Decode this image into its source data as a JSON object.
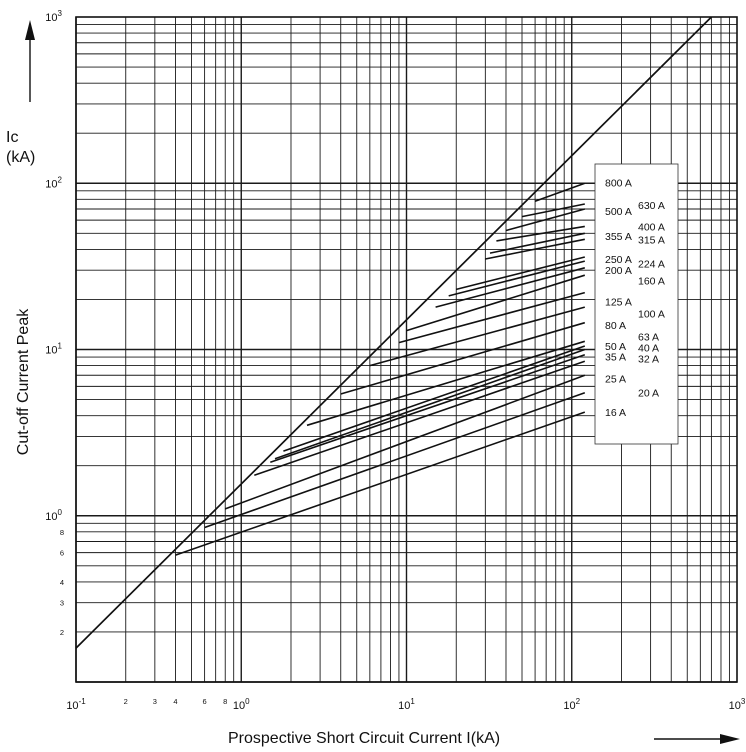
{
  "chart_data": {
    "type": "line",
    "title": "",
    "x_scale": "log",
    "y_scale": "log",
    "xlim": [
      0.1,
      1000
    ],
    "ylim": [
      0.1,
      1000
    ],
    "grid": true,
    "colors": {
      "line": "#111111",
      "grid": "#1a1a1a",
      "background": "#ffffff"
    },
    "ylabel_top": [
      "Ic",
      "(kA)"
    ],
    "ylabel": "Cut-off Current Peak",
    "xlabel": "Prospective Short Circuit Current I(kA)",
    "x_major_ticks": [
      {
        "value": 0.1,
        "base": "10",
        "exp": "-1"
      },
      {
        "value": 1,
        "base": "10",
        "exp": "0"
      },
      {
        "value": 10,
        "base": "10",
        "exp": "1"
      },
      {
        "value": 100,
        "base": "10",
        "exp": "2"
      },
      {
        "value": 1000,
        "base": "10",
        "exp": "3"
      }
    ],
    "x_minor_ticks": [
      {
        "value": 0.2,
        "label": "2"
      },
      {
        "value": 0.3,
        "label": "3"
      },
      {
        "value": 0.4,
        "label": "4"
      },
      {
        "value": 0.6,
        "label": "6"
      },
      {
        "value": 0.8,
        "label": "8"
      }
    ],
    "y_major_ticks": [
      {
        "value": 1,
        "base": "10",
        "exp": "0"
      },
      {
        "value": 10,
        "base": "10",
        "exp": "1"
      },
      {
        "value": 100,
        "base": "10",
        "exp": "2"
      },
      {
        "value": 1000,
        "base": "10",
        "exp": "3"
      }
    ],
    "y_minor_ticks": [
      {
        "value": 0.2,
        "label": "2"
      },
      {
        "value": 0.3,
        "label": "3"
      },
      {
        "value": 0.4,
        "label": "4"
      },
      {
        "value": 0.6,
        "label": "6"
      },
      {
        "value": 0.8,
        "label": "8"
      }
    ],
    "reference_line": {
      "x": [
        0.1,
        700
      ],
      "y": [
        0.16,
        1000
      ]
    },
    "series": [
      {
        "name": "16 A",
        "x": [
          0.4,
          120
        ],
        "y": [
          0.58,
          4.2
        ]
      },
      {
        "name": "20 A",
        "x": [
          0.6,
          120
        ],
        "y": [
          0.85,
          5.5
        ]
      },
      {
        "name": "25 A",
        "x": [
          0.8,
          120
        ],
        "y": [
          1.1,
          7
        ]
      },
      {
        "name": "32 A",
        "x": [
          1.2,
          120
        ],
        "y": [
          1.75,
          8.5
        ]
      },
      {
        "name": "35 A",
        "x": [
          1.5,
          120
        ],
        "y": [
          2.1,
          9.3
        ]
      },
      {
        "name": "40 A",
        "x": [
          1.6,
          120
        ],
        "y": [
          2.2,
          10
        ]
      },
      {
        "name": "50 A",
        "x": [
          1.8,
          120
        ],
        "y": [
          2.45,
          10.5
        ]
      },
      {
        "name": "63 A",
        "x": [
          2.5,
          120
        ],
        "y": [
          3.5,
          11.2
        ]
      },
      {
        "name": "80 A",
        "x": [
          4,
          120
        ],
        "y": [
          5.4,
          14.5
        ]
      },
      {
        "name": "100 A",
        "x": [
          6,
          120
        ],
        "y": [
          8,
          18
        ]
      },
      {
        "name": "125 A",
        "x": [
          9,
          120
        ],
        "y": [
          11,
          22
        ]
      },
      {
        "name": "160 A",
        "x": [
          10,
          120
        ],
        "y": [
          13,
          28
        ]
      },
      {
        "name": "200 A",
        "x": [
          15,
          120
        ],
        "y": [
          18,
          31
        ]
      },
      {
        "name": "224 A",
        "x": [
          18,
          120
        ],
        "y": [
          21,
          34
        ]
      },
      {
        "name": "250 A",
        "x": [
          20,
          120
        ],
        "y": [
          23,
          36
        ]
      },
      {
        "name": "315 A",
        "x": [
          30,
          120
        ],
        "y": [
          35,
          46
        ]
      },
      {
        "name": "355 A",
        "x": [
          32,
          120
        ],
        "y": [
          38,
          50
        ]
      },
      {
        "name": "400 A",
        "x": [
          35,
          120
        ],
        "y": [
          45,
          55
        ]
      },
      {
        "name": "500 A",
        "x": [
          40,
          120
        ],
        "y": [
          52,
          70
        ]
      },
      {
        "name": "630 A",
        "x": [
          50,
          120
        ],
        "y": [
          63,
          75
        ]
      },
      {
        "name": "800 A",
        "x": [
          60,
          120
        ],
        "y": [
          78,
          100
        ]
      }
    ],
    "legend_box": {
      "position": "right of curve ends"
    },
    "legend_labels": [
      {
        "text": "800 A",
        "col": "left",
        "y": 101
      },
      {
        "text": "630 A",
        "col": "right",
        "y": 74
      },
      {
        "text": "500 A",
        "col": "left",
        "y": 68
      },
      {
        "text": "400 A",
        "col": "right",
        "y": 55
      },
      {
        "text": "355 A",
        "col": "left",
        "y": 48
      },
      {
        "text": "315 A",
        "col": "right",
        "y": 46
      },
      {
        "text": "250 A",
        "col": "left",
        "y": 35
      },
      {
        "text": "224 A",
        "col": "right",
        "y": 33
      },
      {
        "text": "200 A",
        "col": "left",
        "y": 30
      },
      {
        "text": "160 A",
        "col": "right",
        "y": 26
      },
      {
        "text": "125 A",
        "col": "left",
        "y": 19.5
      },
      {
        "text": "100 A",
        "col": "right",
        "y": 16.5
      },
      {
        "text": "80 A",
        "col": "left",
        "y": 14
      },
      {
        "text": "63 A",
        "col": "right",
        "y": 12
      },
      {
        "text": "50 A",
        "col": "left",
        "y": 10.5
      },
      {
        "text": "40 A",
        "col": "right",
        "y": 10.3
      },
      {
        "text": "35 A",
        "col": "left",
        "y": 9.1
      },
      {
        "text": "32 A",
        "col": "right",
        "y": 8.8
      },
      {
        "text": "25 A",
        "col": "left",
        "y": 6.7
      },
      {
        "text": "20 A",
        "col": "right",
        "y": 5.5
      },
      {
        "text": "16 A",
        "col": "left",
        "y": 4.2
      }
    ]
  }
}
